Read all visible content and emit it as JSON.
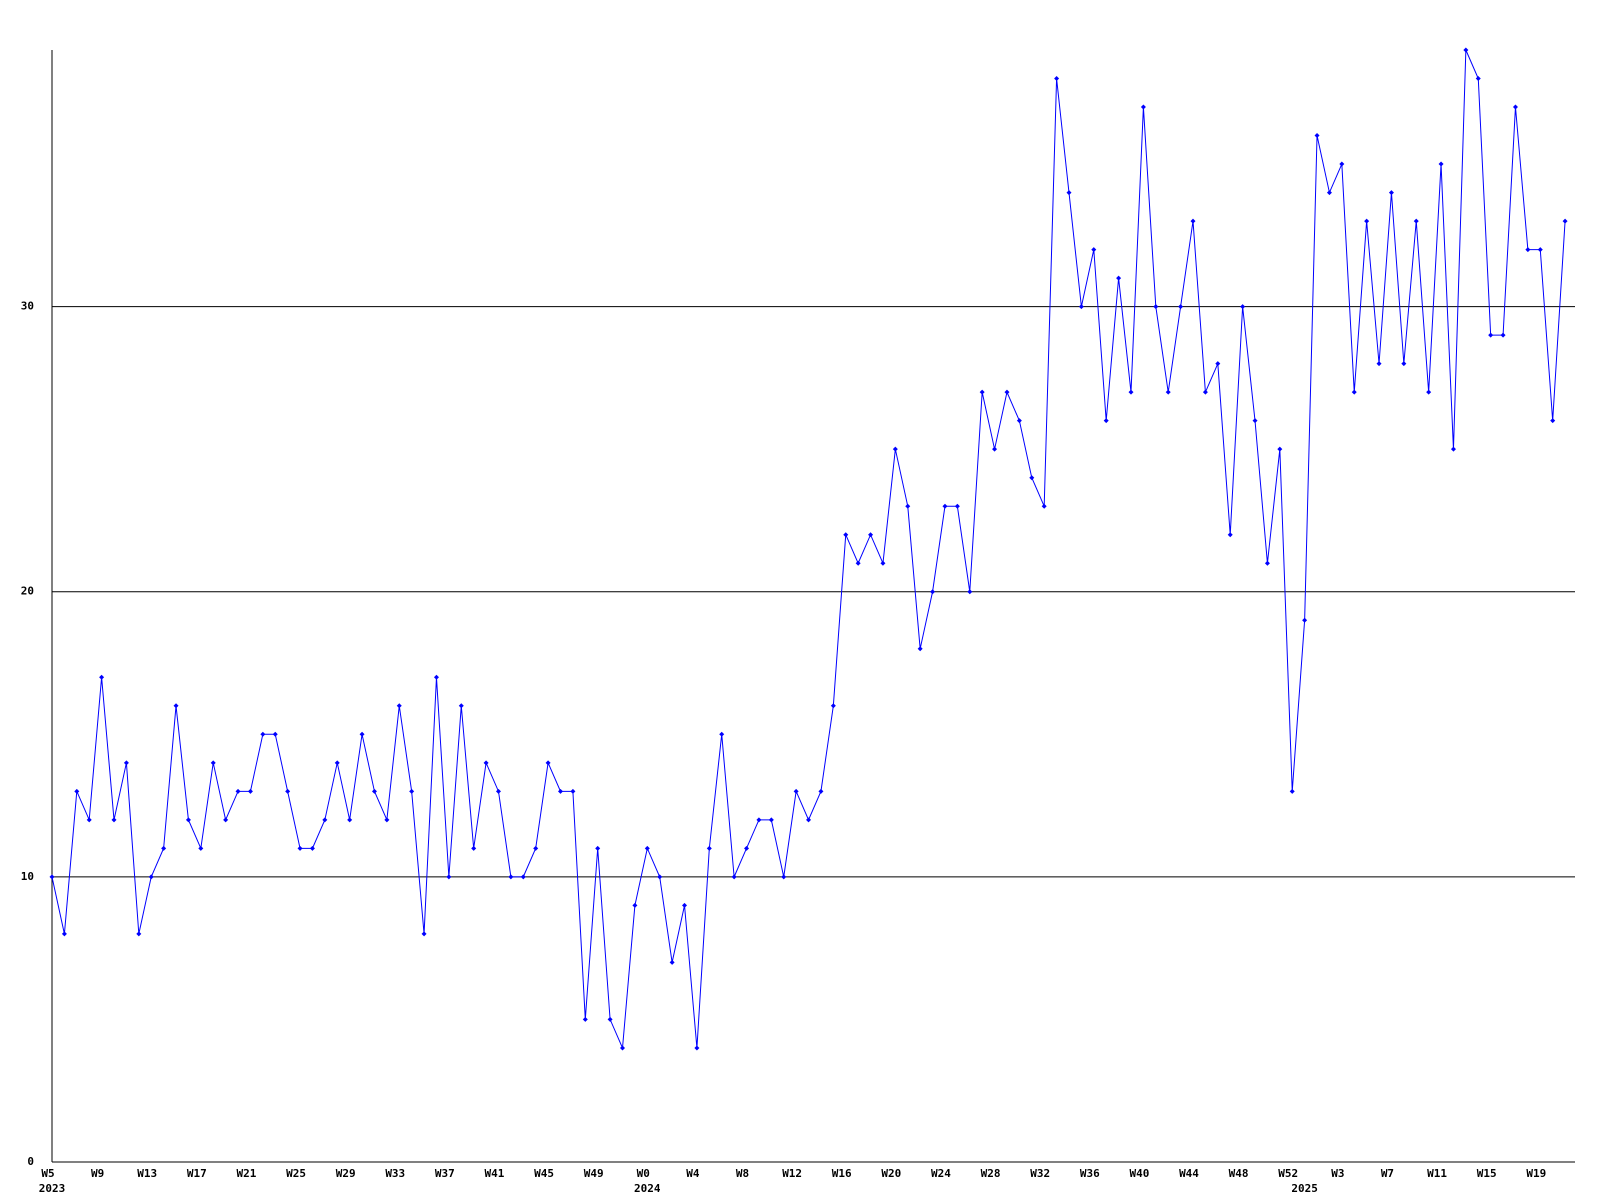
{
  "chart_data": {
    "type": "line",
    "categories": [
      "W5",
      null,
      null,
      null,
      "W9",
      null,
      null,
      null,
      "W13",
      null,
      null,
      null,
      "W17",
      null,
      null,
      null,
      "W21",
      null,
      null,
      null,
      "W25",
      null,
      null,
      null,
      "W29",
      null,
      null,
      null,
      "W33",
      null,
      null,
      null,
      "W37",
      null,
      null,
      null,
      "W41",
      null,
      null,
      null,
      "W45",
      null,
      null,
      null,
      "W49",
      null,
      null,
      null,
      "W0",
      null,
      null,
      null,
      "W4",
      null,
      null,
      null,
      "W8",
      null,
      null,
      null,
      "W12",
      null,
      null,
      null,
      "W16",
      null,
      null,
      null,
      "W20",
      null,
      null,
      null,
      "W24",
      null,
      null,
      null,
      "W28",
      null,
      null,
      null,
      "W32",
      null,
      null,
      null,
      "W36",
      null,
      null,
      null,
      "W40",
      null,
      null,
      null,
      "W44",
      null,
      null,
      null,
      "W48",
      null,
      null,
      null,
      "W52",
      null,
      null,
      null,
      "W3",
      null,
      null,
      null,
      "W7",
      null,
      null,
      null,
      "W11",
      null,
      null,
      null,
      "W15",
      null,
      null,
      null,
      "W19",
      null,
      null
    ],
    "year_labels": [
      {
        "label": "2023",
        "index": 0
      },
      {
        "label": "2024",
        "index": 48
      },
      {
        "label": "2025",
        "index": 101
      }
    ],
    "series": [
      {
        "color": "#0000ff",
        "values": [
          10,
          8,
          13,
          12,
          17,
          12,
          14,
          8,
          10,
          11,
          16,
          12,
          11,
          14,
          12,
          13,
          13,
          15,
          15,
          13,
          11,
          11,
          12,
          14,
          12,
          15,
          13,
          12,
          16,
          13,
          8,
          17,
          10,
          16,
          11,
          14,
          13,
          10,
          10,
          11,
          14,
          13,
          13,
          5,
          11,
          5,
          4,
          9,
          11,
          10,
          7,
          9,
          4,
          11,
          15,
          10,
          11,
          12,
          12,
          10,
          13,
          12,
          13,
          16,
          22,
          21,
          22,
          21,
          25,
          23,
          18,
          20,
          23,
          23,
          20,
          27,
          25,
          27,
          26,
          24,
          23,
          38,
          34,
          30,
          32,
          26,
          31,
          27,
          37,
          30,
          27,
          30,
          33,
          27,
          28,
          22,
          30,
          26,
          21,
          25,
          13,
          19,
          36,
          34,
          35,
          27,
          33,
          28,
          34,
          28,
          33,
          27,
          35,
          25,
          39,
          38,
          29,
          29,
          37,
          32,
          32,
          26,
          33
        ]
      }
    ],
    "ylim": [
      0,
      39
    ],
    "yticks": [
      0,
      10,
      20,
      30
    ],
    "grid": true
  }
}
